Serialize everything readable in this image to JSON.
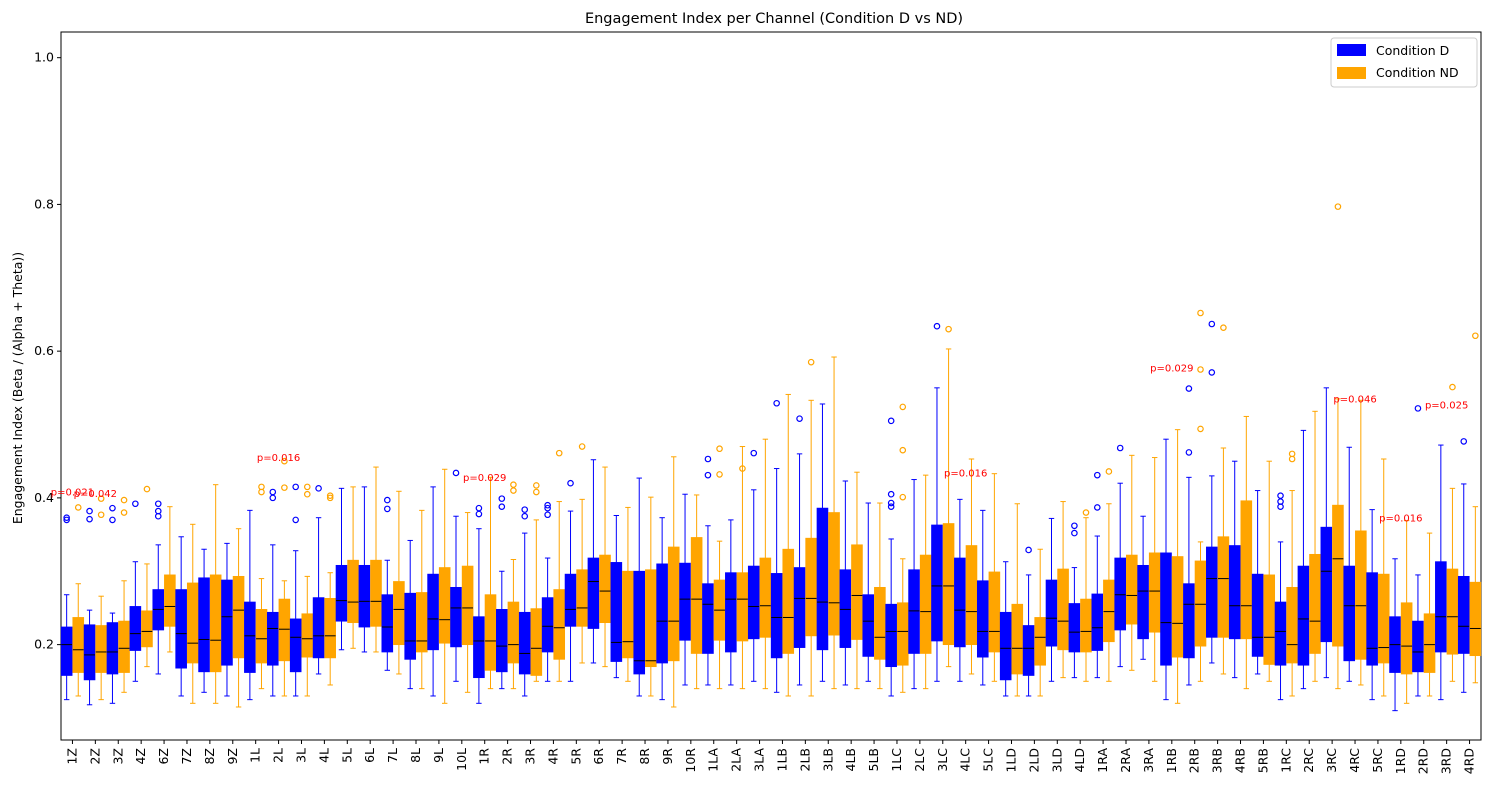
{
  "chart_data": {
    "type": "box",
    "title": "Engagement Index per Channel (Condition D vs ND)",
    "xlabel": "",
    "ylabel": "Engagement Index (Beta / (Alpha + Theta))",
    "ylim": [
      0.07,
      1.035
    ],
    "yticks": [
      0.2,
      0.4,
      0.6,
      0.8,
      1.0
    ],
    "ytick_labels": [
      "0.2",
      "0.4",
      "0.6",
      "0.8",
      "1.0"
    ],
    "grid": false,
    "legend_position": "top-right",
    "series": [
      {
        "name": "Condition D",
        "color": "#0000ff"
      },
      {
        "name": "Condition ND",
        "color": "#ffa500"
      }
    ],
    "categories": [
      "1Z",
      "2Z",
      "3Z",
      "4Z",
      "6Z",
      "7Z",
      "8Z",
      "9Z",
      "1L",
      "2L",
      "3L",
      "4L",
      "5L",
      "6L",
      "7L",
      "8L",
      "9L",
      "10L",
      "1R",
      "2R",
      "3R",
      "4R",
      "5R",
      "6R",
      "7R",
      "8R",
      "9R",
      "10R",
      "1LA",
      "2LA",
      "3LA",
      "1LB",
      "2LB",
      "3LB",
      "4LB",
      "5LB",
      "1LC",
      "2LC",
      "3LC",
      "4LC",
      "5LC",
      "1LD",
      "2LD",
      "3LD",
      "4LD",
      "1RA",
      "2RA",
      "3RA",
      "1RB",
      "2RB",
      "3RB",
      "4RB",
      "5RB",
      "1RC",
      "2RC",
      "3RC",
      "4RC",
      "5RC",
      "1RD",
      "2RD",
      "3RD",
      "4RD"
    ],
    "boxes": {
      "D": [
        [
          0.125,
          0.158,
          0.2,
          0.224,
          0.268,
          [
            0.37,
            0.373
          ]
        ],
        [
          0.118,
          0.152,
          0.186,
          0.227,
          0.247,
          [
            0.371,
            0.382
          ]
        ],
        [
          0.12,
          0.16,
          0.19,
          0.23,
          0.243,
          [
            0.37,
            0.386
          ]
        ],
        [
          0.15,
          0.192,
          0.215,
          0.252,
          0.313,
          [
            0.392
          ]
        ],
        [
          0.16,
          0.22,
          0.248,
          0.275,
          0.336,
          [
            0.375,
            0.382,
            0.392
          ]
        ],
        [
          0.13,
          0.168,
          0.215,
          0.275,
          0.347,
          []
        ],
        [
          0.135,
          0.163,
          0.207,
          0.291,
          0.33,
          []
        ],
        [
          0.13,
          0.172,
          0.238,
          0.288,
          0.338,
          []
        ],
        [
          0.125,
          0.162,
          0.212,
          0.258,
          0.383,
          []
        ],
        [
          0.13,
          0.172,
          0.222,
          0.244,
          0.336,
          [
            0.4,
            0.408
          ]
        ],
        [
          0.13,
          0.163,
          0.21,
          0.235,
          0.328,
          [
            0.37,
            0.415
          ]
        ],
        [
          0.16,
          0.182,
          0.212,
          0.264,
          0.373,
          [
            0.413
          ]
        ],
        [
          0.193,
          0.232,
          0.26,
          0.308,
          0.413,
          []
        ],
        [
          0.19,
          0.224,
          0.259,
          0.308,
          0.415,
          []
        ],
        [
          0.165,
          0.19,
          0.224,
          0.268,
          0.315,
          [
            0.385,
            0.397
          ]
        ],
        [
          0.14,
          0.18,
          0.205,
          0.27,
          0.342,
          []
        ],
        [
          0.13,
          0.193,
          0.235,
          0.296,
          0.415,
          []
        ],
        [
          0.15,
          0.197,
          0.25,
          0.278,
          0.375,
          [
            0.434
          ]
        ],
        [
          0.12,
          0.155,
          0.205,
          0.238,
          0.358,
          [
            0.378,
            0.386
          ]
        ],
        [
          0.14,
          0.163,
          0.198,
          0.248,
          0.3,
          [
            0.388,
            0.399
          ]
        ],
        [
          0.13,
          0.16,
          0.188,
          0.244,
          0.352,
          [
            0.375,
            0.384
          ]
        ],
        [
          0.15,
          0.19,
          0.225,
          0.264,
          0.318,
          [
            0.377,
            0.386,
            0.39
          ]
        ],
        [
          0.15,
          0.225,
          0.248,
          0.296,
          0.382,
          [
            0.42
          ]
        ],
        [
          0.175,
          0.222,
          0.286,
          0.318,
          0.452,
          []
        ],
        [
          0.155,
          0.177,
          0.203,
          0.312,
          0.376,
          []
        ],
        [
          0.13,
          0.16,
          0.178,
          0.3,
          0.427,
          []
        ],
        [
          0.125,
          0.175,
          0.232,
          0.31,
          0.373,
          []
        ],
        [
          0.145,
          0.206,
          0.262,
          0.311,
          0.405,
          []
        ],
        [
          0.145,
          0.188,
          0.255,
          0.283,
          0.362,
          [
            0.431,
            0.453
          ]
        ],
        [
          0.145,
          0.19,
          0.262,
          0.298,
          0.37,
          []
        ],
        [
          0.15,
          0.208,
          0.252,
          0.307,
          0.411,
          [
            0.461
          ]
        ],
        [
          0.135,
          0.182,
          0.237,
          0.297,
          0.44,
          [
            0.529
          ]
        ],
        [
          0.145,
          0.196,
          0.263,
          0.305,
          0.46,
          [
            0.508
          ]
        ],
        [
          0.15,
          0.193,
          0.258,
          0.386,
          0.528,
          []
        ],
        [
          0.145,
          0.196,
          0.248,
          0.302,
          0.423,
          []
        ],
        [
          0.15,
          0.184,
          0.232,
          0.268,
          0.393,
          []
        ],
        [
          0.13,
          0.17,
          0.218,
          0.255,
          0.344,
          [
            0.388,
            0.393,
            0.405,
            0.505
          ]
        ],
        [
          0.14,
          0.188,
          0.246,
          0.302,
          0.425,
          []
        ],
        [
          0.15,
          0.205,
          0.28,
          0.363,
          0.55,
          [
            0.634
          ]
        ],
        [
          0.15,
          0.197,
          0.247,
          0.318,
          0.398,
          []
        ],
        [
          0.145,
          0.183,
          0.218,
          0.287,
          0.383,
          []
        ],
        [
          0.13,
          0.152,
          0.195,
          0.244,
          0.313,
          []
        ],
        [
          0.13,
          0.158,
          0.195,
          0.226,
          0.295,
          [
            0.329
          ]
        ],
        [
          0.15,
          0.198,
          0.236,
          0.288,
          0.372,
          []
        ],
        [
          0.155,
          0.19,
          0.217,
          0.256,
          0.305,
          [
            0.352,
            0.362
          ]
        ],
        [
          0.155,
          0.192,
          0.223,
          0.269,
          0.348,
          [
            0.387,
            0.431
          ]
        ],
        [
          0.17,
          0.22,
          0.268,
          0.318,
          0.42,
          [
            0.468
          ]
        ],
        [
          0.18,
          0.208,
          0.273,
          0.308,
          0.375,
          []
        ],
        [
          0.125,
          0.172,
          0.23,
          0.325,
          0.48,
          []
        ],
        [
          0.145,
          0.182,
          0.255,
          0.283,
          0.428,
          [
            0.462,
            0.549
          ]
        ],
        [
          0.175,
          0.21,
          0.29,
          0.333,
          0.43,
          [
            0.571,
            0.637
          ]
        ],
        [
          0.155,
          0.208,
          0.253,
          0.335,
          0.45,
          []
        ],
        [
          0.16,
          0.184,
          0.21,
          0.296,
          0.41,
          []
        ],
        [
          0.125,
          0.172,
          0.218,
          0.258,
          0.34,
          [
            0.388,
            0.395,
            0.403
          ]
        ],
        [
          0.14,
          0.172,
          0.235,
          0.307,
          0.492,
          []
        ],
        [
          0.155,
          0.204,
          0.3,
          0.36,
          0.55,
          []
        ],
        [
          0.15,
          0.178,
          0.253,
          0.307,
          0.469,
          []
        ],
        [
          0.125,
          0.172,
          0.195,
          0.298,
          0.384,
          []
        ],
        [
          0.11,
          0.162,
          0.2,
          0.238,
          0.317,
          []
        ],
        [
          0.13,
          0.163,
          0.19,
          0.232,
          0.295,
          [
            0.522
          ]
        ],
        [
          0.125,
          0.19,
          0.238,
          0.313,
          0.472,
          []
        ],
        [
          0.135,
          0.188,
          0.225,
          0.293,
          0.419,
          [
            0.477
          ]
        ]
      ],
      "ND": [
        [
          0.13,
          0.162,
          0.193,
          0.237,
          0.283,
          [
            0.387
          ]
        ],
        [
          0.125,
          0.162,
          0.19,
          0.226,
          0.266,
          [
            0.377,
            0.399
          ]
        ],
        [
          0.135,
          0.162,
          0.195,
          0.232,
          0.287,
          [
            0.38,
            0.397
          ]
        ],
        [
          0.17,
          0.197,
          0.218,
          0.246,
          0.31,
          [
            0.412
          ]
        ],
        [
          0.19,
          0.225,
          0.252,
          0.295,
          0.388,
          []
        ],
        [
          0.12,
          0.175,
          0.202,
          0.284,
          0.364,
          []
        ],
        [
          0.12,
          0.163,
          0.206,
          0.295,
          0.418,
          []
        ],
        [
          0.115,
          0.182,
          0.247,
          0.293,
          0.358,
          []
        ],
        [
          0.14,
          0.175,
          0.208,
          0.248,
          0.29,
          [
            0.408,
            0.415
          ]
        ],
        [
          0.13,
          0.178,
          0.221,
          0.262,
          0.287,
          [
            0.414,
            0.45
          ]
        ],
        [
          0.13,
          0.183,
          0.208,
          0.242,
          0.293,
          [
            0.405,
            0.415
          ]
        ],
        [
          0.145,
          0.182,
          0.212,
          0.263,
          0.298,
          [
            0.4,
            0.403
          ]
        ],
        [
          0.195,
          0.23,
          0.258,
          0.315,
          0.415,
          []
        ],
        [
          0.19,
          0.225,
          0.259,
          0.315,
          0.442,
          []
        ],
        [
          0.16,
          0.2,
          0.248,
          0.286,
          0.409,
          []
        ],
        [
          0.14,
          0.19,
          0.205,
          0.271,
          0.383,
          []
        ],
        [
          0.12,
          0.202,
          0.234,
          0.305,
          0.439,
          []
        ],
        [
          0.135,
          0.2,
          0.25,
          0.307,
          0.38,
          []
        ],
        [
          0.14,
          0.165,
          0.205,
          0.268,
          0.428,
          []
        ],
        [
          0.14,
          0.175,
          0.2,
          0.258,
          0.316,
          [
            0.41,
            0.418
          ]
        ],
        [
          0.15,
          0.158,
          0.195,
          0.249,
          0.37,
          [
            0.408,
            0.417
          ]
        ],
        [
          0.15,
          0.18,
          0.223,
          0.275,
          0.395,
          [
            0.461
          ]
        ],
        [
          0.175,
          0.225,
          0.25,
          0.302,
          0.398,
          [
            0.47
          ]
        ],
        [
          0.17,
          0.23,
          0.273,
          0.322,
          0.442,
          []
        ],
        [
          0.15,
          0.182,
          0.204,
          0.3,
          0.387,
          []
        ],
        [
          0.13,
          0.17,
          0.178,
          0.302,
          0.401,
          []
        ],
        [
          0.115,
          0.178,
          0.232,
          0.333,
          0.456,
          []
        ],
        [
          0.14,
          0.188,
          0.262,
          0.346,
          0.404,
          []
        ],
        [
          0.14,
          0.206,
          0.247,
          0.288,
          0.341,
          [
            0.432,
            0.467
          ]
        ],
        [
          0.14,
          0.205,
          0.262,
          0.298,
          0.47,
          [
            0.44
          ]
        ],
        [
          0.14,
          0.21,
          0.253,
          0.318,
          0.48,
          []
        ],
        [
          0.13,
          0.188,
          0.237,
          0.33,
          0.541,
          []
        ],
        [
          0.13,
          0.212,
          0.263,
          0.345,
          0.533,
          [
            0.585
          ]
        ],
        [
          0.14,
          0.213,
          0.257,
          0.38,
          0.592,
          []
        ],
        [
          0.14,
          0.207,
          0.267,
          0.336,
          0.435,
          []
        ],
        [
          0.14,
          0.18,
          0.21,
          0.278,
          0.393,
          []
        ],
        [
          0.135,
          0.172,
          0.218,
          0.257,
          0.317,
          [
            0.401,
            0.465,
            0.524
          ]
        ],
        [
          0.14,
          0.188,
          0.245,
          0.322,
          0.431,
          []
        ],
        [
          0.17,
          0.2,
          0.28,
          0.365,
          0.603,
          [
            0.63
          ]
        ],
        [
          0.16,
          0.2,
          0.245,
          0.335,
          0.453,
          []
        ],
        [
          0.15,
          0.19,
          0.218,
          0.299,
          0.433,
          []
        ],
        [
          0.13,
          0.16,
          0.195,
          0.255,
          0.392,
          []
        ],
        [
          0.13,
          0.172,
          0.21,
          0.237,
          0.33,
          []
        ],
        [
          0.155,
          0.193,
          0.232,
          0.303,
          0.395,
          []
        ],
        [
          0.15,
          0.19,
          0.218,
          0.262,
          0.373,
          [
            0.38
          ]
        ],
        [
          0.15,
          0.204,
          0.245,
          0.288,
          0.392,
          [
            0.436
          ]
        ],
        [
          0.165,
          0.228,
          0.267,
          0.322,
          0.458,
          []
        ],
        [
          0.15,
          0.217,
          0.273,
          0.325,
          0.455,
          []
        ],
        [
          0.12,
          0.183,
          0.229,
          0.32,
          0.493,
          []
        ],
        [
          0.15,
          0.198,
          0.255,
          0.314,
          0.34,
          [
            0.494,
            0.575,
            0.652
          ]
        ],
        [
          0.16,
          0.21,
          0.29,
          0.347,
          0.468,
          [
            0.632
          ]
        ],
        [
          0.14,
          0.208,
          0.253,
          0.396,
          0.511,
          []
        ],
        [
          0.15,
          0.173,
          0.21,
          0.295,
          0.45,
          []
        ],
        [
          0.13,
          0.175,
          0.2,
          0.278,
          0.41,
          [
            0.453,
            0.46
          ]
        ],
        [
          0.15,
          0.188,
          0.232,
          0.323,
          0.518,
          []
        ],
        [
          0.14,
          0.198,
          0.317,
          0.39,
          0.535,
          [
            0.797
          ]
        ],
        [
          0.145,
          0.18,
          0.253,
          0.355,
          0.533,
          []
        ],
        [
          0.13,
          0.175,
          0.196,
          0.296,
          0.453,
          []
        ],
        [
          0.12,
          0.16,
          0.198,
          0.257,
          0.369,
          []
        ],
        [
          0.13,
          0.162,
          0.2,
          0.242,
          0.352,
          []
        ],
        [
          0.15,
          0.187,
          0.238,
          0.303,
          0.413,
          [
            0.551
          ]
        ],
        [
          0.148,
          0.185,
          0.222,
          0.285,
          0.388,
          [
            0.621
          ]
        ]
      ]
    },
    "annotations": [
      {
        "text": "p=0.021",
        "category": "1Z",
        "y": 0.403
      },
      {
        "text": "p=0.042",
        "category": "2Z",
        "y": 0.401
      },
      {
        "text": "p=0.016",
        "category": "2L",
        "y": 0.45
      },
      {
        "text": "p=0.029",
        "category": "1R",
        "y": 0.423
      },
      {
        "text": "p=0.016",
        "category": "4LC",
        "y": 0.429
      },
      {
        "text": "p=0.029",
        "category": "1RB",
        "y": 0.572
      },
      {
        "text": "p=0.046",
        "category": "4RC",
        "y": 0.53
      },
      {
        "text": "p=0.016",
        "category": "1RD",
        "y": 0.368
      },
      {
        "text": "p=0.025",
        "category": "3RD",
        "y": 0.522
      }
    ],
    "annotation_color": "#ff0000"
  }
}
